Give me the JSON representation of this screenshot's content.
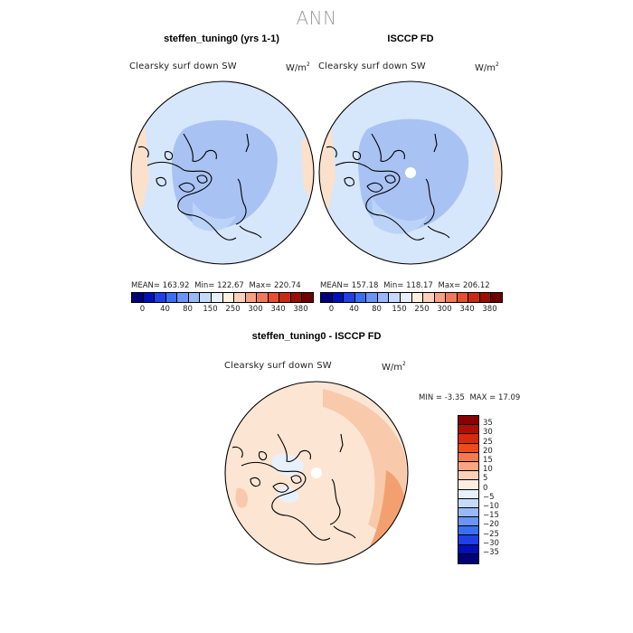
{
  "figure": {
    "title": "ANN"
  },
  "panels": [
    {
      "title": "steffen_tuning0 (yrs 1-1)",
      "variable": "Clearsky surf down SW",
      "units_base": "W/m",
      "units_exp": "2",
      "stats": {
        "mean_label": "MEAN=",
        "mean": "163.92",
        "min_label": "Min=",
        "min": "122.67",
        "max_label": "Max=",
        "max": "220.74"
      },
      "colorbar": {
        "colors": [
          "#00007a",
          "#0010b8",
          "#1e40e6",
          "#3b6ff2",
          "#6a95f4",
          "#98b8f7",
          "#c6dafb",
          "#e6f0fe",
          "#fff0e2",
          "#fbd2b8",
          "#f6a282",
          "#f07a58",
          "#e54e2e",
          "#c92a12",
          "#9b0e00",
          "#6e0000"
        ],
        "ticks": [
          "0",
          "40",
          "80",
          "150",
          "250",
          "300",
          "340",
          "380"
        ]
      }
    },
    {
      "title": "ISCCP FD",
      "variable": "Clearsky surf down SW",
      "units_base": "W/m",
      "units_exp": "2",
      "stats": {
        "mean_label": "MEAN=",
        "mean": "157.18",
        "min_label": "Min=",
        "min": "118.17",
        "max_label": "Max=",
        "max": "206.12"
      },
      "colorbar": {
        "colors": [
          "#00007a",
          "#0010b8",
          "#1e40e6",
          "#3b6ff2",
          "#6a95f4",
          "#98b8f7",
          "#c6dafb",
          "#e6f0fe",
          "#fff0e2",
          "#fbd2b8",
          "#f6a282",
          "#f07a58",
          "#e54e2e",
          "#c92a12",
          "#9b0e00",
          "#6e0000"
        ],
        "ticks": [
          "0",
          "40",
          "80",
          "150",
          "250",
          "300",
          "340",
          "380"
        ]
      }
    },
    {
      "title": "steffen_tuning0 - ISCCP FD",
      "variable": "Clearsky surf down SW",
      "units_base": "W/m",
      "units_exp": "2",
      "stats": {
        "min_label": "MIN =",
        "min": "-3.35",
        "max_label": "MAX =",
        "max": "17.09"
      },
      "colorbar": {
        "colors": [
          "#8b0000",
          "#b00f00",
          "#d82a0a",
          "#f04a1c",
          "#f77a4e",
          "#fba583",
          "#fdd1b8",
          "#fdeee2",
          "#e6f0fe",
          "#c6dafb",
          "#98b8f7",
          "#6a95f4",
          "#3b6ff2",
          "#1e40e6",
          "#0010b8",
          "#00007a"
        ],
        "labels": [
          "35",
          "30",
          "25",
          "20",
          "15",
          "10",
          "5",
          "0",
          "−5",
          "−10",
          "−15",
          "−20",
          "−25",
          "−30",
          "−35"
        ]
      }
    }
  ],
  "colors": {
    "sea": "#d6e6fb",
    "sea_mid": "#bcd3f8",
    "inner": "#a8c2f3",
    "warm": "#fbe1cc",
    "diff_base": "#fde5d3",
    "diff_mid": "#f9c9ab",
    "diff_hot": "#f3a070",
    "diff_cold": "#e8f0fd"
  }
}
